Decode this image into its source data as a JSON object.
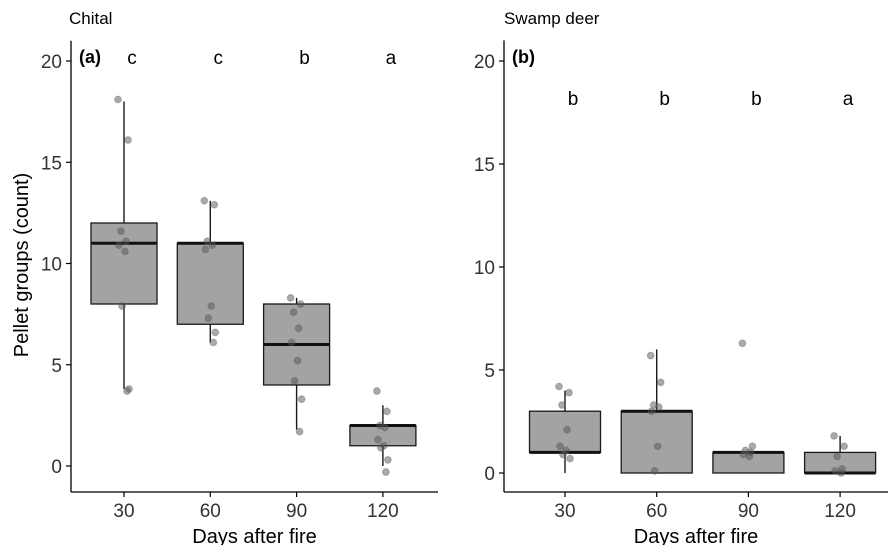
{
  "ylabel": "Pellet groups (count)",
  "colors": {
    "box_fill": "#a3a3a3",
    "box_stroke": "#1a1a1a",
    "point": "#555555",
    "axis": "#000000"
  },
  "chart_data": [
    {
      "type": "boxplot",
      "panel_label": "(a)",
      "title": "Chital",
      "xlabel": "Days after fire",
      "ylabel": "Pellet groups (count)",
      "categories": [
        "30",
        "60",
        "90",
        "120"
      ],
      "y_ticks": [
        0,
        5,
        10,
        15,
        20
      ],
      "y_tick_labels": [
        "0",
        "5",
        "10",
        "15",
        "20"
      ],
      "ylim": [
        -1.1,
        21
      ],
      "grid": false,
      "significance_letters": [
        "c",
        "c",
        "b",
        "a"
      ],
      "letters_y": 20.2,
      "boxes": [
        {
          "category": "30",
          "q1": 8,
          "median": 11,
          "q3": 12,
          "whisker_low": 3.8,
          "whisker_high": 18,
          "points": [
            18.1,
            16.1,
            11.6,
            11.1,
            10.9,
            10.6,
            7.9,
            3.8,
            3.7
          ]
        },
        {
          "category": "60",
          "q1": 7,
          "median": 11,
          "q3": 11,
          "whisker_low": 6.1,
          "whisker_high": 13.1,
          "points": [
            13.1,
            12.9,
            11.1,
            10.9,
            10.7,
            7.9,
            7.3,
            6.6,
            6.1
          ]
        },
        {
          "category": "90",
          "q1": 4,
          "median": 6,
          "q3": 8,
          "whisker_low": 1.8,
          "whisker_high": 8.3,
          "points": [
            8.3,
            8.0,
            7.6,
            6.8,
            6.1,
            5.2,
            4.2,
            3.3,
            1.7
          ]
        },
        {
          "category": "120",
          "q1": 1,
          "median": 2,
          "q3": 2,
          "whisker_low": 0,
          "whisker_high": 3,
          "points": [
            3.7,
            2.7,
            2.0,
            1.9,
            1.3,
            1.0,
            0.9,
            0.3,
            -0.3
          ]
        }
      ]
    },
    {
      "type": "boxplot",
      "panel_label": "(b)",
      "title": "Swamp deer",
      "xlabel": "Days after fire",
      "ylabel": "",
      "categories": [
        "30",
        "60",
        "90",
        "120"
      ],
      "y_ticks": [
        0,
        5,
        10,
        15,
        20
      ],
      "y_tick_labels": [
        "0",
        "5",
        "10",
        "15",
        "20"
      ],
      "ylim": [
        -0.7,
        21
      ],
      "grid": false,
      "significance_letters": [
        "b",
        "b",
        "b",
        "a"
      ],
      "letters_y": 18.2,
      "boxes": [
        {
          "category": "30",
          "q1": 1,
          "median": 1,
          "q3": 3,
          "whisker_low": 0,
          "whisker_high": 4,
          "points": [
            4.2,
            3.9,
            3.3,
            2.1,
            1.3,
            1.1,
            0.9,
            0.7
          ]
        },
        {
          "category": "60",
          "q1": 0,
          "median": 3,
          "q3": 3,
          "whisker_low": 0,
          "whisker_high": 6,
          "points": [
            5.7,
            4.4,
            3.3,
            3.2,
            3.0,
            1.3,
            0.1
          ]
        },
        {
          "category": "90",
          "q1": 0,
          "median": 1,
          "q3": 1,
          "whisker_low": 0,
          "whisker_high": 1,
          "points": [
            6.3,
            1.3,
            1.1,
            1.0,
            0.9,
            0.8
          ]
        },
        {
          "category": "120",
          "q1": 0,
          "median": 0,
          "q3": 1,
          "whisker_low": 0,
          "whisker_high": 1.8,
          "points": [
            1.8,
            1.3,
            0.8,
            0.2,
            0.1,
            0.0
          ]
        }
      ]
    }
  ]
}
